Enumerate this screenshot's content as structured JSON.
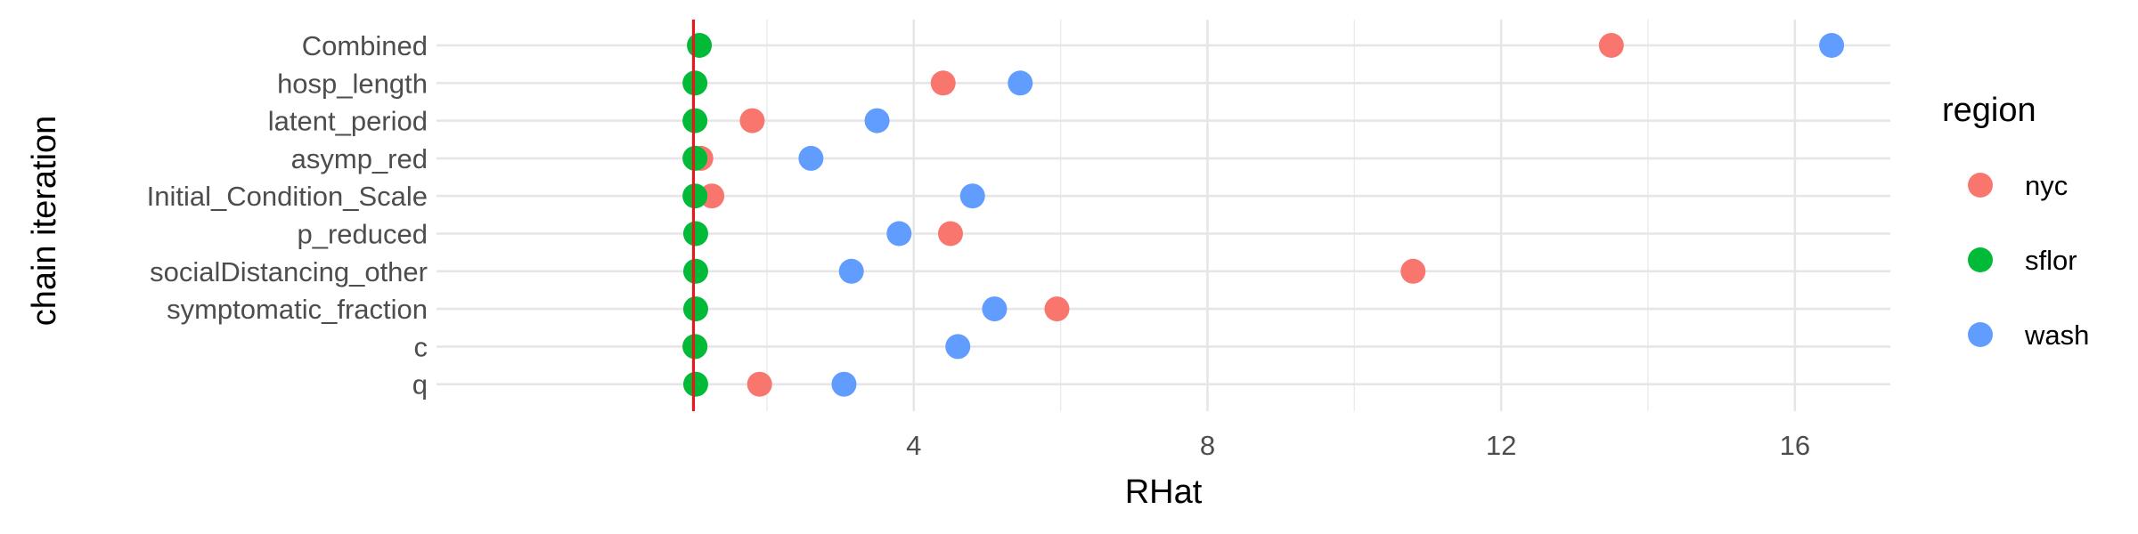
{
  "chart_data": {
    "type": "scatter",
    "xlabel": "RHat",
    "ylabel": "chain iteration",
    "xlim": [
      -2.5,
      17.3
    ],
    "x_ticks": [
      4,
      8,
      12,
      16
    ],
    "x_minor_grid": [
      2,
      6,
      10,
      14
    ],
    "categories": [
      "Combined",
      "hosp_length",
      "latent_period",
      "asymp_red",
      "Initial_Condition_Scale",
      "p_reduced",
      "socialDistancing_other",
      "symptomatic_fraction",
      "c",
      "q"
    ],
    "reference_line": {
      "x": 1.0,
      "color": "#E41A1C"
    },
    "legend": {
      "title": "region",
      "position": "right"
    },
    "grid": true,
    "series": [
      {
        "name": "nyc",
        "color": "#F8766D",
        "values": [
          13.5,
          4.4,
          1.8,
          1.1,
          1.25,
          4.5,
          10.8,
          5.95,
          1.02,
          1.9
        ]
      },
      {
        "name": "sflor",
        "color": "#00BA38",
        "values": [
          1.08,
          1.02,
          1.02,
          1.02,
          1.02,
          1.03,
          1.03,
          1.03,
          1.02,
          1.03
        ]
      },
      {
        "name": "wash",
        "color": "#619CFF",
        "values": [
          16.5,
          5.45,
          3.5,
          2.6,
          4.8,
          3.8,
          3.15,
          5.1,
          4.6,
          3.05
        ]
      }
    ]
  }
}
